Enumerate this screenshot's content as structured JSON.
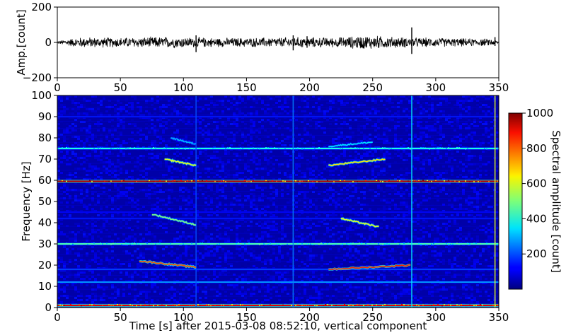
{
  "chart_data": [
    {
      "type": "line",
      "title": "",
      "xlabel": "",
      "ylabel": "Amp.[count]",
      "xlim": [
        0,
        350
      ],
      "ylim": [
        -200,
        200
      ],
      "xticks": [
        "0",
        "50",
        "100",
        "150",
        "200",
        "250",
        "300",
        "350"
      ],
      "yticks": [
        "200",
        "0",
        "−200"
      ],
      "series": [
        {
          "description": "seismic waveform (noise envelope amplitude vs time) with transient spikes",
          "envelope": {
            "t": [
              0,
              10,
              20,
              50,
              80,
              100,
              130,
              160,
              190,
              220,
              240,
              250,
              260,
              280,
              300,
              330,
              345,
              350
            ],
            "amp": [
              8,
              22,
              30,
              28,
              32,
              30,
              26,
              27,
              30,
              28,
              38,
              40,
              34,
              28,
              26,
              22,
              20,
              6
            ]
          },
          "spikes": [
            {
              "t": 110,
              "max": 40,
              "min": -55
            },
            {
              "t": 187,
              "max": 40,
              "min": -45
            },
            {
              "t": 198,
              "max": 35,
              "min": -30
            },
            {
              "t": 281,
              "max": 85,
              "min": -65
            },
            {
              "t": 347,
              "max": 30,
              "min": -20
            }
          ],
          "color": "#000000"
        }
      ]
    },
    {
      "type": "heatmap",
      "title": "",
      "xlabel": "Time [s] after 2015-03-08 08:52:10, vertical component",
      "ylabel": "Frequency [Hz]",
      "xlim": [
        0,
        350
      ],
      "ylim": [
        0,
        100
      ],
      "xticks": [
        "0",
        "50",
        "100",
        "150",
        "200",
        "250",
        "300",
        "350"
      ],
      "yticks": [
        "0",
        "10",
        "20",
        "30",
        "40",
        "50",
        "60",
        "70",
        "80",
        "90",
        "100"
      ],
      "colormap": "jet",
      "colorbar": {
        "label": "Spectral amplitude [count]",
        "range": [
          0,
          1000
        ],
        "ticks": [
          "200",
          "400",
          "600",
          "800",
          "1000"
        ]
      },
      "background_amplitude": 80,
      "harmonic_lines": [
        {
          "freq": 1,
          "amp": 900
        },
        {
          "freq": 12,
          "amp": 300
        },
        {
          "freq": 18,
          "amp": 200
        },
        {
          "freq": 30,
          "amp": 450
        },
        {
          "freq": 42,
          "amp": 150
        },
        {
          "freq": 45,
          "amp": 130
        },
        {
          "freq": 59.5,
          "amp": 950
        },
        {
          "freq": 75,
          "amp": 400
        },
        {
          "freq": 90,
          "amp": 150
        }
      ],
      "vertical_events": [
        {
          "t": 110,
          "amp": 200
        },
        {
          "t": 187,
          "amp": 250
        },
        {
          "t": 281,
          "amp": 350
        },
        {
          "t": 347,
          "amp": 600
        }
      ],
      "glides": [
        {
          "t0": 65,
          "t1": 110,
          "f0": 22,
          "f1": 19,
          "amp": 800
        },
        {
          "t0": 215,
          "t1": 280,
          "f0": 18,
          "f1": 20,
          "amp": 850
        },
        {
          "t0": 75,
          "t1": 110,
          "f0": 44,
          "f1": 39,
          "amp": 500
        },
        {
          "t0": 225,
          "t1": 255,
          "f0": 42,
          "f1": 38,
          "amp": 600
        },
        {
          "t0": 85,
          "t1": 110,
          "f0": 70,
          "f1": 67,
          "amp": 600
        },
        {
          "t0": 215,
          "t1": 260,
          "f0": 67,
          "f1": 70,
          "amp": 650
        },
        {
          "t0": 90,
          "t1": 110,
          "f0": 80,
          "f1": 77,
          "amp": 300
        },
        {
          "t0": 215,
          "t1": 250,
          "f0": 76,
          "f1": 78,
          "amp": 350
        }
      ]
    }
  ]
}
